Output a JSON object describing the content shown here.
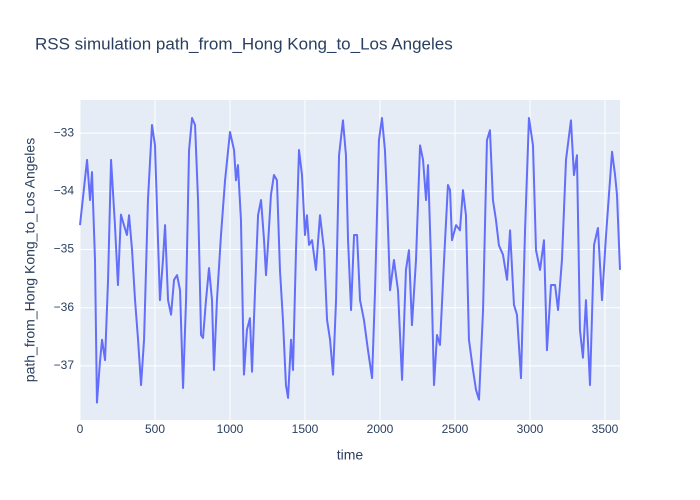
{
  "chart_data": {
    "type": "line",
    "title": "RSS simulation path_from_Hong Kong_to_Los Angeles",
    "x_label": "time",
    "y_label": "path_from_Hong Kong_to_Los Angeles",
    "x": [
      0,
      47,
      67,
      80,
      100,
      113,
      133,
      147,
      167,
      187,
      207,
      233,
      253,
      273,
      293,
      313,
      327,
      347,
      367,
      387,
      407,
      427,
      453,
      480,
      500,
      520,
      533,
      553,
      567,
      587,
      607,
      627,
      647,
      667,
      687,
      707,
      727,
      747,
      767,
      787,
      807,
      820,
      840,
      860,
      880,
      893,
      913,
      940,
      967,
      1000,
      1027,
      1040,
      1053,
      1073,
      1093,
      1113,
      1133,
      1147,
      1167,
      1187,
      1207,
      1227,
      1240,
      1253,
      1273,
      1293,
      1313,
      1333,
      1353,
      1373,
      1387,
      1407,
      1420,
      1440,
      1460,
      1480,
      1500,
      1513,
      1527,
      1547,
      1573,
      1600,
      1627,
      1647,
      1667,
      1687,
      1707,
      1727,
      1753,
      1773,
      1787,
      1807,
      1827,
      1847,
      1867,
      1893,
      1920,
      1947,
      1967,
      1993,
      2013,
      2033,
      2047,
      2067,
      2093,
      2120,
      2147,
      2173,
      2193,
      2213,
      2240,
      2267,
      2287,
      2307,
      2320,
      2340,
      2360,
      2380,
      2400,
      2427,
      2453,
      2467,
      2480,
      2507,
      2533,
      2553,
      2573,
      2593,
      2620,
      2640,
      2660,
      2687,
      2713,
      2733,
      2753,
      2773,
      2793,
      2820,
      2847,
      2867,
      2893,
      2913,
      2940,
      2967,
      2993,
      3020,
      3040,
      3067,
      3093,
      3113,
      3140,
      3167,
      3187,
      3213,
      3240,
      3273,
      3293,
      3313,
      3333,
      3353,
      3373,
      3400,
      3427,
      3453,
      3480,
      3507,
      3547,
      3567,
      3580,
      3600
    ],
    "series": [
      {
        "color": "#636efa",
        "values": [
          -34.58,
          -33.46,
          -34.15,
          -33.67,
          -35.18,
          -37.63,
          -36.93,
          -36.55,
          -36.9,
          -35.52,
          -33.46,
          -34.58,
          -35.61,
          -34.4,
          -34.58,
          -34.75,
          -34.41,
          -35.01,
          -35.87,
          -36.55,
          -37.33,
          -36.55,
          -34.15,
          -32.86,
          -33.21,
          -34.84,
          -35.87,
          -35.18,
          -34.58,
          -35.87,
          -36.12,
          -35.52,
          -35.44,
          -35.7,
          -37.38,
          -35.87,
          -33.29,
          -32.74,
          -32.86,
          -34.15,
          -36.47,
          -36.52,
          -35.87,
          -35.32,
          -35.87,
          -37.07,
          -35.87,
          -34.75,
          -33.81,
          -32.98,
          -33.29,
          -33.81,
          -33.55,
          -34.49,
          -37.15,
          -36.38,
          -36.18,
          -37.1,
          -35.7,
          -34.41,
          -34.15,
          -34.84,
          -35.44,
          -34.93,
          -34.06,
          -33.72,
          -33.81,
          -35.35,
          -36.21,
          -37.33,
          -37.55,
          -36.55,
          -37.07,
          -35.01,
          -33.29,
          -33.72,
          -34.75,
          -34.41,
          -34.92,
          -34.84,
          -35.35,
          -34.41,
          -35.01,
          -36.21,
          -36.55,
          -37.15,
          -35.87,
          -33.38,
          -32.78,
          -33.38,
          -34.84,
          -36.04,
          -34.75,
          -34.75,
          -35.87,
          -36.21,
          -36.73,
          -37.21,
          -35.7,
          -33.12,
          -32.74,
          -33.29,
          -34.15,
          -35.7,
          -35.18,
          -35.7,
          -37.24,
          -35.35,
          -35.01,
          -36.3,
          -35.18,
          -33.21,
          -33.46,
          -34.15,
          -33.55,
          -35.18,
          -37.33,
          -36.47,
          -36.64,
          -35.18,
          -33.89,
          -33.98,
          -34.84,
          -34.58,
          -34.67,
          -33.98,
          -34.41,
          -36.55,
          -37.07,
          -37.41,
          -37.58,
          -36.04,
          -33.12,
          -32.95,
          -34.15,
          -34.49,
          -34.93,
          -35.09,
          -35.52,
          -34.67,
          -35.95,
          -36.12,
          -37.21,
          -34.67,
          -32.74,
          -33.21,
          -35.01,
          -35.35,
          -34.84,
          -36.73,
          -35.61,
          -35.61,
          -36.04,
          -35.18,
          -33.46,
          -32.78,
          -33.72,
          -33.38,
          -36.38,
          -36.86,
          -35.87,
          -37.33,
          -34.92,
          -34.63,
          -35.87,
          -34.75,
          -33.32,
          -33.72,
          -34.06,
          -35.35
        ]
      }
    ],
    "xlim": [
      0,
      3600
    ],
    "xticks": [
      0,
      500,
      1000,
      1500,
      2000,
      2500,
      3000,
      3500
    ],
    "ylim": [
      -37.93,
      -32.43
    ],
    "yticks": [
      {
        "value": -37,
        "label": "−37"
      },
      {
        "value": -36,
        "label": "−36"
      },
      {
        "value": -35,
        "label": "−35"
      },
      {
        "value": -34,
        "label": "−34"
      },
      {
        "value": -33,
        "label": "−33"
      }
    ],
    "grid": true
  }
}
